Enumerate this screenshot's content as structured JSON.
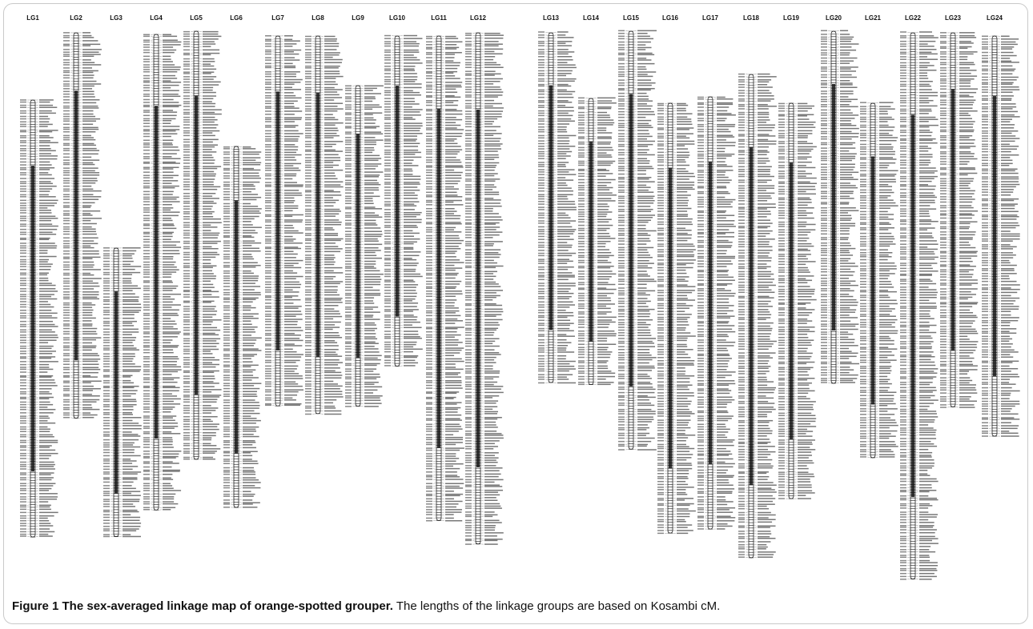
{
  "figure": {
    "caption_title": "Figure 1 The sex-averaged linkage map of orange-spotted grouper.",
    "caption_body": " The lengths of the linkage groups are based on Kosambi cM."
  },
  "linkage_groups": [
    {
      "name": "LG1",
      "length_cM": 73.6
    },
    {
      "name": "LG2",
      "length_cM": 64.9
    },
    {
      "name": "LG3",
      "length_cM": 48.6
    },
    {
      "name": "LG4",
      "length_cM": 80.1
    },
    {
      "name": "LG5",
      "length_cM": 72.1
    },
    {
      "name": "LG6",
      "length_cM": 60.8
    },
    {
      "name": "LG7",
      "length_cM": 62.3
    },
    {
      "name": "LG8",
      "length_cM": 63.6
    },
    {
      "name": "LG9",
      "length_cM": 54.0
    },
    {
      "name": "LG10",
      "length_cM": 55.6
    },
    {
      "name": "LG11",
      "length_cM": 81.6
    },
    {
      "name": "LG12",
      "length_cM": 86.1
    },
    {
      "name": "LG13",
      "length_cM": 58.9
    },
    {
      "name": "LG14",
      "length_cM": 48.2
    },
    {
      "name": "LG15",
      "length_cM": 70.4
    },
    {
      "name": "LG16",
      "length_cM": 72.4
    },
    {
      "name": "LG17",
      "length_cM": 72.8
    },
    {
      "name": "LG18",
      "length_cM": 81.4
    },
    {
      "name": "LG19",
      "length_cM": 66.6
    },
    {
      "name": "LG20",
      "length_cM": 59.3
    },
    {
      "name": "LG21",
      "length_cM": 59.7
    },
    {
      "name": "LG22",
      "length_cM": 92.0
    },
    {
      "name": "LG23",
      "length_cM": 63.0
    },
    {
      "name": "LG24",
      "length_cM": 67.4
    }
  ]
}
